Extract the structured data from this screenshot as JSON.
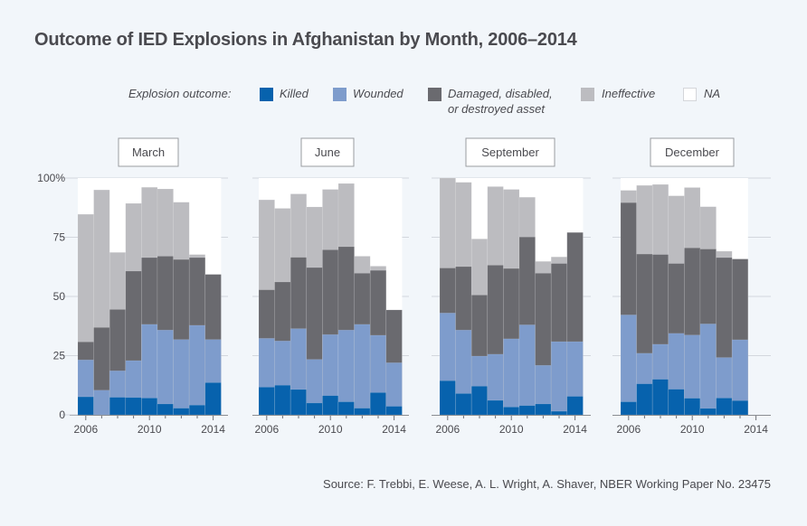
{
  "chart_data": {
    "type": "bar",
    "stacked": true,
    "title": "Outcome of IED Explosions in Afghanistan by Month, 2006–2014",
    "legend_title": "Explosion outcome:",
    "legend": [
      {
        "key": "killed",
        "label": "Killed",
        "color": "#0762ad"
      },
      {
        "key": "wounded",
        "label": "Wounded",
        "color": "#7e9ccc"
      },
      {
        "key": "damaged",
        "label": "Damaged, disabled,",
        "label2": "or destroyed asset",
        "color": "#6a6a6f"
      },
      {
        "key": "ineffective",
        "label": "Ineffective",
        "color": "#bcbcc0"
      },
      {
        "key": "na",
        "label": "NA",
        "color": "#ffffff"
      }
    ],
    "legend_position": "top",
    "ylabel": "",
    "xlabel": "",
    "ylim": [
      0,
      100
    ],
    "yticks": [
      0,
      25,
      50,
      75,
      100
    ],
    "ytick_labels": [
      "0",
      "25",
      "50",
      "75",
      "100%"
    ],
    "xticks": [
      2006,
      2010,
      2014
    ],
    "xtick_labels": [
      "2006",
      "2010",
      "2014"
    ],
    "x_minor_ticks": [
      2006,
      2007,
      2008,
      2009,
      2010,
      2011,
      2012,
      2013,
      2014
    ],
    "value_unit": "cumulative percent (top edge of each stacked segment)",
    "panels": [
      {
        "title": "March",
        "years": [
          2006,
          2007,
          2008,
          2009,
          2010,
          2011,
          2012,
          2013,
          2014
        ],
        "killed": [
          7.6,
          0.0,
          7.4,
          7.3,
          7.1,
          4.6,
          2.8,
          4.1,
          13.6
        ],
        "wounded": [
          23.2,
          10.4,
          18.6,
          22.9,
          38.2,
          35.8,
          31.8,
          37.8,
          31.8
        ],
        "damaged": [
          30.8,
          36.9,
          44.5,
          60.7,
          66.4,
          67.0,
          65.6,
          66.4,
          59.3
        ],
        "ineffective": [
          84.7,
          95.0,
          68.6,
          89.3,
          96.1,
          95.4,
          89.8,
          67.7,
          59.3
        ]
      },
      {
        "title": "June",
        "years": [
          2006,
          2007,
          2008,
          2009,
          2010,
          2011,
          2012,
          2013,
          2014
        ],
        "killed": [
          11.7,
          12.5,
          10.7,
          5.0,
          8.1,
          5.5,
          2.8,
          9.4,
          3.6
        ],
        "wounded": [
          32.3,
          31.2,
          36.4,
          23.4,
          33.9,
          35.8,
          38.2,
          33.6,
          22.0
        ],
        "damaged": [
          52.8,
          56.1,
          66.5,
          62.2,
          69.7,
          71.0,
          59.8,
          61.0,
          44.3
        ],
        "ineffective": [
          90.8,
          87.2,
          93.3,
          87.8,
          95.2,
          97.7,
          67.0,
          62.8,
          44.3
        ]
      },
      {
        "title": "September",
        "years": [
          2006,
          2007,
          2008,
          2009,
          2010,
          2011,
          2012,
          2013,
          2014
        ],
        "killed": [
          14.4,
          9.0,
          12.1,
          6.1,
          3.3,
          3.9,
          4.6,
          1.5,
          7.8
        ],
        "wounded": [
          43.0,
          35.8,
          24.8,
          25.6,
          32.1,
          38.0,
          20.9,
          30.9,
          30.9
        ],
        "damaged": [
          62.0,
          62.6,
          50.6,
          63.2,
          61.8,
          75.1,
          59.8,
          63.9,
          77.0
        ],
        "ineffective": [
          100.0,
          98.2,
          74.3,
          96.4,
          95.2,
          91.9,
          64.8,
          66.7,
          77.0
        ]
      },
      {
        "title": "December",
        "years": [
          2006,
          2007,
          2008,
          2009,
          2010,
          2011,
          2012,
          2013
        ],
        "killed": [
          5.5,
          13.1,
          15.0,
          10.8,
          7.0,
          2.7,
          7.1,
          6.0
        ],
        "wounded": [
          42.2,
          26.0,
          29.8,
          34.4,
          33.7,
          38.4,
          24.2,
          31.7
        ],
        "damaged": [
          89.6,
          67.9,
          67.7,
          63.9,
          70.5,
          70.0,
          66.4,
          65.8
        ],
        "ineffective": [
          94.8,
          96.9,
          97.3,
          92.5,
          96.0,
          87.9,
          69.1,
          65.8
        ]
      }
    ]
  },
  "source": "Source: F. Trebbi, E. Weese, A. L. Wright, A. Shaver, NBER Working Paper No. 23475"
}
